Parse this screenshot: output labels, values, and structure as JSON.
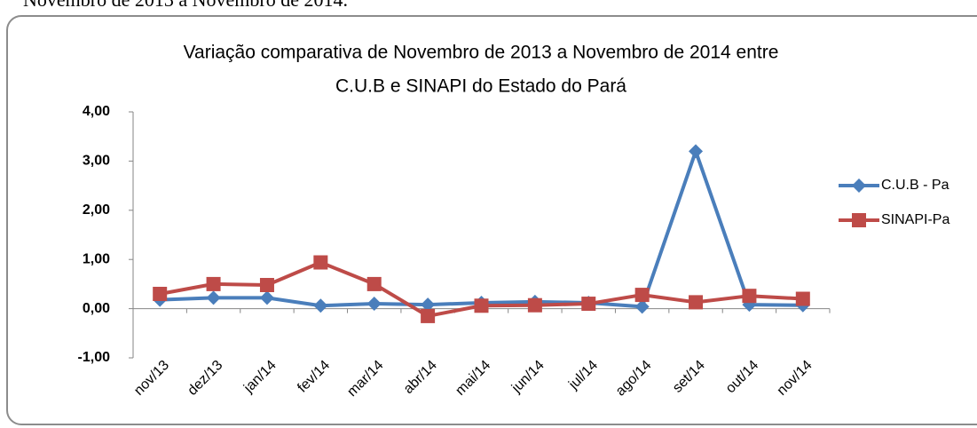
{
  "caption": "Novembro de 2013 a Novembro de 2014.",
  "chart_data": {
    "type": "line",
    "title": "Variação comparativa de Novembro de 2013 a Novembro de 2014 entre",
    "subtitle": "C.U.B e SINAPI do Estado do Pará",
    "categories": [
      "nov/13",
      "dez/13",
      "jan/14",
      "fev/14",
      "mar/14",
      "abr/14",
      "mai/14",
      "jun/14",
      "jul/14",
      "ago/14",
      "set/14",
      "out/14",
      "nov/14"
    ],
    "series": [
      {
        "name": "C.U.B - Pa",
        "color": "#4a7ebb",
        "marker": "diamond",
        "values": [
          0.18,
          0.22,
          0.22,
          0.06,
          0.1,
          0.08,
          0.12,
          0.14,
          0.12,
          0.04,
          3.2,
          0.08,
          0.07
        ]
      },
      {
        "name": "SINAPI-Pa",
        "color": "#be4b48",
        "marker": "square",
        "values": [
          0.3,
          0.5,
          0.48,
          0.94,
          0.5,
          -0.15,
          0.06,
          0.07,
          0.1,
          0.28,
          0.13,
          0.26,
          0.2
        ]
      }
    ],
    "ylim": [
      -1,
      4
    ],
    "yticks": [
      {
        "value": -1,
        "label": "-1,00"
      },
      {
        "value": 0,
        "label": "0,00"
      },
      {
        "value": 1,
        "label": "1,00"
      },
      {
        "value": 2,
        "label": "2,00"
      },
      {
        "value": 3,
        "label": "3,00"
      },
      {
        "value": 4,
        "label": "4,00"
      }
    ],
    "grid": false,
    "legend": "right"
  }
}
